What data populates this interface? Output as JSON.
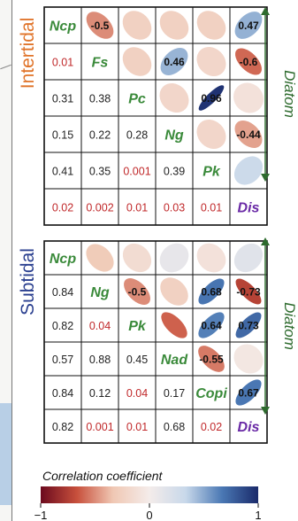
{
  "panels": [
    {
      "label": "Intertidal",
      "label_color": "#e0742a",
      "side_label": "Diatom",
      "size": 6,
      "names": [
        "Ncp",
        "Fs",
        "Pc",
        "Ng",
        "Pk",
        "Dis"
      ],
      "name_colors": [
        "#3a8a3a",
        "#3a8a3a",
        "#3a8a3a",
        "#3a8a3a",
        "#3a8a3a",
        "#6a2aa6"
      ],
      "p_values": [
        [
          "",
          "",
          "",
          "",
          "",
          ""
        ],
        [
          "0.01",
          "",
          "",
          "",
          "",
          ""
        ],
        [
          "0.31",
          "0.38",
          "",
          "",
          "",
          ""
        ],
        [
          "0.15",
          "0.22",
          "0.28",
          "",
          "",
          ""
        ],
        [
          "0.41",
          "0.35",
          "0.001",
          "0.39",
          "",
          ""
        ],
        [
          "0.02",
          "0.002",
          "0.01",
          "0.03",
          "0.01",
          ""
        ]
      ],
      "p_colors": [
        [
          "",
          "",
          "",
          "",
          "",
          ""
        ],
        [
          "red",
          "",
          "",
          "",
          "",
          ""
        ],
        [
          "black",
          "black",
          "",
          "",
          "",
          ""
        ],
        [
          "black",
          "black",
          "black",
          "",
          "",
          ""
        ],
        [
          "black",
          "black",
          "red",
          "black",
          "",
          ""
        ],
        [
          "red",
          "red",
          "red",
          "red",
          "red",
          ""
        ]
      ],
      "correlations": [
        [
          null,
          -0.5,
          -0.25,
          -0.25,
          -0.25,
          0.47
        ],
        [
          null,
          null,
          -0.25,
          0.46,
          -0.2,
          -0.6
        ],
        [
          null,
          null,
          null,
          -0.2,
          0.96,
          -0.1
        ],
        [
          null,
          null,
          null,
          null,
          -0.2,
          -0.44
        ],
        [
          null,
          null,
          null,
          null,
          null,
          0.3
        ],
        [
          null,
          null,
          null,
          null,
          null,
          null
        ]
      ],
      "labels": [
        [
          "",
          "-0.5",
          "",
          "",
          "",
          "0.47"
        ],
        [
          "",
          "",
          "",
          "0.46",
          "",
          "-0.6"
        ],
        [
          "",
          "",
          "",
          "",
          "0.96",
          ""
        ],
        [
          "",
          "",
          "",
          "",
          "",
          "-0.44"
        ],
        [
          "",
          "",
          "",
          "",
          "",
          ""
        ],
        [
          "",
          "",
          "",
          "",
          "",
          ""
        ]
      ]
    },
    {
      "label": "Subtidal",
      "label_color": "#2a3f8f",
      "side_label": "Diatom",
      "size": 6,
      "names": [
        "Ncp",
        "Ng",
        "Pk",
        "Nad",
        "Copi",
        "Dis"
      ],
      "name_colors": [
        "#3a8a3a",
        "#3a8a3a",
        "#3a8a3a",
        "#3a8a3a",
        "#3a8a3a",
        "#6a2aa6"
      ],
      "p_values": [
        [
          "",
          "",
          "",
          "",
          "",
          ""
        ],
        [
          "0.84",
          "",
          "",
          "",
          "",
          ""
        ],
        [
          "0.82",
          "0.04",
          "",
          "",
          "",
          ""
        ],
        [
          "0.57",
          "0.88",
          "0.45",
          "",
          "",
          ""
        ],
        [
          "0.84",
          "0.12",
          "0.04",
          "0.17",
          "",
          ""
        ],
        [
          "0.82",
          "0.001",
          "0.01",
          "0.68",
          "0.02",
          ""
        ]
      ],
      "p_colors": [
        [
          "",
          "",
          "",
          "",
          "",
          ""
        ],
        [
          "black",
          "",
          "",
          "",
          "",
          ""
        ],
        [
          "black",
          "red",
          "",
          "",
          "",
          ""
        ],
        [
          "black",
          "black",
          "black",
          "",
          "",
          ""
        ],
        [
          "black",
          "black",
          "red",
          "black",
          "",
          ""
        ],
        [
          "black",
          "red",
          "red",
          "black",
          "red",
          ""
        ]
      ],
      "correlations": [
        [
          null,
          -0.3,
          -0.15,
          0.1,
          -0.1,
          0.15
        ],
        [
          null,
          null,
          -0.5,
          -0.25,
          0.68,
          -0.73
        ],
        [
          null,
          null,
          null,
          -0.62,
          0.64,
          0.73
        ],
        [
          null,
          null,
          null,
          null,
          -0.55,
          -0.05
        ],
        [
          null,
          null,
          null,
          null,
          null,
          0.67
        ],
        [
          null,
          null,
          null,
          null,
          null,
          null
        ]
      ],
      "labels": [
        [
          "",
          "",
          "",
          "",
          "",
          ""
        ],
        [
          "",
          "",
          "-0.5",
          "",
          "0.68",
          "-0.73"
        ],
        [
          "",
          "",
          "",
          "",
          "0.64",
          "0.73"
        ],
        [
          "",
          "",
          "",
          "",
          "-0.55",
          ""
        ],
        [
          "",
          "",
          "",
          "",
          "",
          "0.67"
        ],
        [
          "",
          "",
          "",
          "",
          "",
          ""
        ]
      ]
    }
  ],
  "colorbar": {
    "title": "Correlation coefficient",
    "ticks": [
      "−1",
      "0",
      "1"
    ],
    "colors": [
      "#6b0a1e",
      "#c8503c",
      "#f0c8b4",
      "#f4ecea",
      "#c8d8ea",
      "#4a78b4",
      "#1a2a6a"
    ]
  },
  "colors": {
    "red_text": "#c0282a",
    "black_text": "#222222",
    "arrow": "#2e6b2e"
  },
  "chart_data": {
    "type": "heatmap",
    "panels": [
      {
        "label": "Intertidal",
        "variables": [
          "Ncp",
          "Fs",
          "Pc",
          "Ng",
          "Pk",
          "Dis"
        ],
        "corr_labeled": {
          "Ncp-Fs": -0.5,
          "Ncp-Dis": 0.47,
          "Fs-Ng": 0.46,
          "Fs-Dis": -0.6,
          "Pc-Pk": 0.96,
          "Ng-Dis": -0.44
        },
        "p_values": {
          "Fs-Ncp": 0.01,
          "Pc-Ncp": 0.31,
          "Pc-Fs": 0.38,
          "Ng-Ncp": 0.15,
          "Ng-Fs": 0.22,
          "Ng-Pc": 0.28,
          "Pk-Ncp": 0.41,
          "Pk-Fs": 0.35,
          "Pk-Pc": 0.001,
          "Pk-Ng": 0.39,
          "Dis-Ncp": 0.02,
          "Dis-Fs": 0.002,
          "Dis-Pc": 0.01,
          "Dis-Ng": 0.03,
          "Dis-Pk": 0.01
        }
      },
      {
        "label": "Subtidal",
        "variables": [
          "Ncp",
          "Ng",
          "Pk",
          "Nad",
          "Copi",
          "Dis"
        ],
        "corr_labeled": {
          "Ng-Pk": -0.5,
          "Ng-Copi": 0.68,
          "Ng-Dis": -0.73,
          "Pk-Copi": 0.64,
          "Pk-Dis": 0.73,
          "Nad-Copi": -0.55,
          "Copi-Dis": 0.67
        },
        "p_values": {
          "Ng-Ncp": 0.84,
          "Pk-Ncp": 0.82,
          "Pk-Ng": 0.04,
          "Nad-Ncp": 0.57,
          "Nad-Ng": 0.88,
          "Nad-Pk": 0.45,
          "Copi-Ncp": 0.84,
          "Copi-Ng": 0.12,
          "Copi-Pk": 0.04,
          "Copi-Nad": 0.17,
          "Dis-Ncp": 0.82,
          "Dis-Ng": 0.001,
          "Dis-Pk": 0.01,
          "Dis-Nad": 0.68,
          "Dis-Copi": 0.02
        }
      }
    ],
    "colorbar_range": [
      -1,
      1
    ]
  }
}
